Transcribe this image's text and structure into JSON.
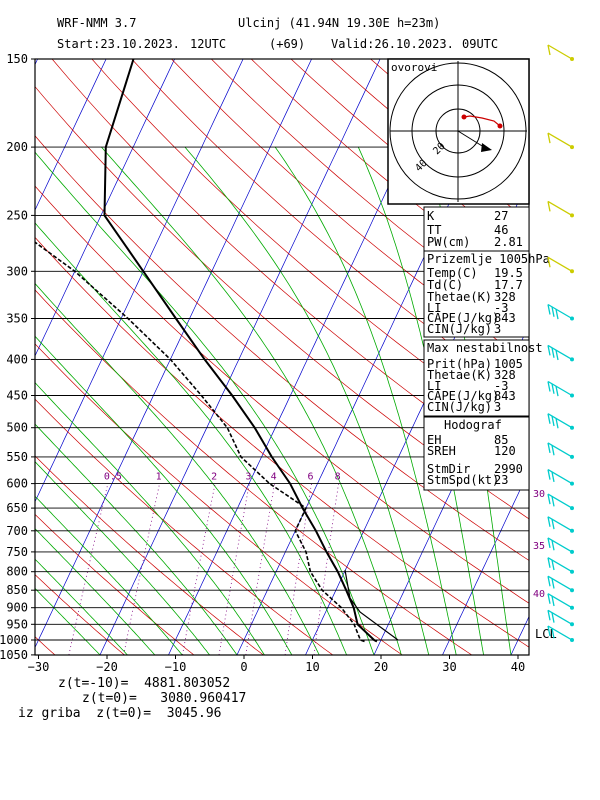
{
  "header": {
    "model": "WRF-NMM 3.7",
    "station": "Ulcinj (41.94N 19.30E  h=23m)",
    "start": "Start:23.10.2023.",
    "start_hour": "12UTC",
    "lead": "(+69)",
    "valid": "Valid:26.10.2023.",
    "valid_hour": "09UTC"
  },
  "colors": {
    "isobar": "#000000",
    "isotherm": "#0000cc",
    "dry_adiabat": "#cc0000",
    "moist_adiabat": "#00aa00",
    "mixing_ratio": "#800080",
    "temperature": "#000000",
    "dewpoint": "#000000",
    "wind_barb": "#00cccc",
    "wind_barb_upper": "#cccc00"
  },
  "hodograph": {
    "label": "ovorovi",
    "ring_labels": [
      "20",
      "40"
    ]
  },
  "indices": {
    "rows": [
      {
        "k": "K",
        "v": "27"
      },
      {
        "k": "TT",
        "v": "46"
      },
      {
        "k": "PW(cm)",
        "v": "2.81"
      }
    ]
  },
  "surface": {
    "title": "Prizemlje 1005hPa",
    "rows": [
      {
        "k": "Temp(C)",
        "v": "19.5"
      },
      {
        "k": "Td(C)",
        "v": "17.7"
      },
      {
        "k": "Thetae(K)",
        "v": "328"
      },
      {
        "k": "LI",
        "v": "-3"
      },
      {
        "k": "CAPE(J/kg)",
        "v": "843"
      },
      {
        "k": "CIN(J/kg)",
        "v": "3"
      }
    ]
  },
  "max_unstable": {
    "title": "Max nestabilnost",
    "rows": [
      {
        "k": "Prit(hPa)",
        "v": "1005"
      },
      {
        "k": "Thetae(K)",
        "v": "328"
      },
      {
        "k": "LI",
        "v": "-3"
      },
      {
        "k": "CAPE(J/kg)",
        "v": "843"
      },
      {
        "k": "CIN(J/kg)",
        "v": "3"
      }
    ]
  },
  "hodograf": {
    "title": "Hodograf",
    "rows": [
      {
        "k": "EH",
        "v": "85"
      },
      {
        "k": "SREH",
        "v": "120"
      },
      {
        "k": "StmDir",
        "v": "2990"
      },
      {
        "k": "StmSpd(kt)",
        "v": "23"
      }
    ]
  },
  "lcl_label": "LCL",
  "footer": {
    "line1": "z(t=-10)=  4881.803052",
    "line2": "z(t=0)=   3080.960417",
    "line3": "iz griba  z(t=0)=  3045.96"
  },
  "chart_data": {
    "type": "skew-t",
    "pressure_ticks": [
      150,
      200,
      250,
      300,
      350,
      400,
      450,
      500,
      550,
      600,
      650,
      700,
      750,
      800,
      850,
      900,
      950,
      1000,
      1050
    ],
    "temperature_ticks": [
      -30,
      -20,
      -10,
      0,
      10,
      20,
      30,
      40
    ],
    "ylim_hpa": [
      150,
      1050
    ],
    "xlim_c": [
      -30,
      42
    ],
    "mixing_ratio_labels": [
      "0.5",
      "1",
      "2",
      "3",
      "4",
      "6",
      "8"
    ],
    "mixing_ratio_values": [
      0.5,
      1,
      2,
      3,
      4,
      6,
      8
    ],
    "theta_labels": [
      "30",
      "35",
      "40"
    ],
    "temperature_profile": [
      {
        "p": 1005,
        "t": 19.5
      },
      {
        "p": 1000,
        "t": 19.0
      },
      {
        "p": 950,
        "t": 15.5
      },
      {
        "p": 900,
        "t": 13.8
      },
      {
        "p": 850,
        "t": 11.5
      },
      {
        "p": 800,
        "t": 9.0
      },
      {
        "p": 750,
        "t": 6.0
      },
      {
        "p": 700,
        "t": 3.0
      },
      {
        "p": 650,
        "t": -0.5
      },
      {
        "p": 600,
        "t": -4.0
      },
      {
        "p": 550,
        "t": -8.5
      },
      {
        "p": 500,
        "t": -13.0
      },
      {
        "p": 450,
        "t": -18.5
      },
      {
        "p": 400,
        "t": -25.0
      },
      {
        "p": 350,
        "t": -32.0
      },
      {
        "p": 300,
        "t": -40.0
      },
      {
        "p": 250,
        "t": -49.5
      },
      {
        "p": 200,
        "t": -54.0
      },
      {
        "p": 150,
        "t": -56.0
      }
    ],
    "dewpoint_profile": [
      {
        "p": 1005,
        "t": 17.7
      },
      {
        "p": 1000,
        "t": 17.0
      },
      {
        "p": 950,
        "t": 15.0
      },
      {
        "p": 900,
        "t": 12.0
      },
      {
        "p": 850,
        "t": 8.0
      },
      {
        "p": 800,
        "t": 5.0
      },
      {
        "p": 750,
        "t": 3.0
      },
      {
        "p": 700,
        "t": 0.0
      },
      {
        "p": 650,
        "t": 0.0
      },
      {
        "p": 600,
        "t": -7.0
      },
      {
        "p": 550,
        "t": -13.0
      },
      {
        "p": 500,
        "t": -17.0
      },
      {
        "p": 450,
        "t": -23.0
      },
      {
        "p": 400,
        "t": -30.0
      },
      {
        "p": 350,
        "t": -39.0
      },
      {
        "p": 300,
        "t": -50.0
      },
      {
        "p": 250,
        "t": -65.0
      },
      {
        "p": 200,
        "t": -68.0
      },
      {
        "p": 150,
        "t": -75.0
      }
    ],
    "wind_levels_hpa": [
      150,
      200,
      250,
      300,
      350,
      400,
      450,
      500,
      550,
      600,
      650,
      700,
      750,
      800,
      850,
      900,
      950,
      1000
    ]
  }
}
